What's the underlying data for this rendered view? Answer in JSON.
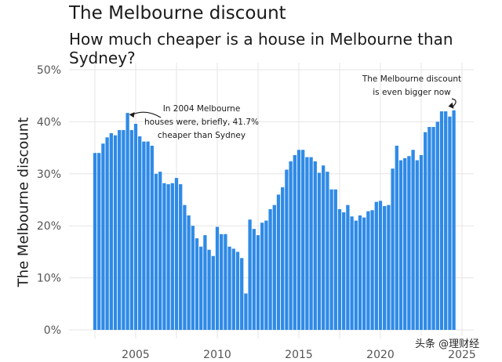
{
  "title": "The Melbourne discount",
  "subtitle": "How much cheaper is a house in Melbourne than Sydney?",
  "watermark": "头条 @理财经",
  "colors": {
    "bar": "#2f8ae6",
    "grid": "#e6e6e6",
    "text": "#1a1a1a",
    "axis_text": "#555555"
  },
  "chart_data": {
    "type": "bar",
    "ylabel": "The Melbourne discount",
    "xlabel": "",
    "ylim": [
      0,
      50
    ],
    "y_ticks": [
      "0%",
      "10%",
      "20%",
      "30%",
      "40%",
      "50%"
    ],
    "x_ticks": [
      "2005",
      "2010",
      "2015",
      "2020",
      "2025"
    ],
    "x_start": 2002.5,
    "x_step": 0.25,
    "grid": true,
    "legend": "none",
    "values": [
      34.0,
      34.0,
      35.8,
      37.0,
      37.8,
      37.4,
      38.4,
      38.4,
      41.7,
      38.4,
      39.6,
      37.2,
      36.2,
      36.2,
      35.4,
      30.0,
      30.4,
      28.2,
      28.0,
      28.2,
      29.2,
      28.0,
      24.0,
      22.0,
      20.0,
      17.6,
      16.0,
      18.2,
      15.4,
      14.2,
      19.8,
      18.4,
      18.4,
      16.0,
      15.6,
      15.0,
      13.8,
      7.0,
      21.2,
      19.4,
      18.2,
      20.6,
      21.0,
      23.2,
      24.0,
      26.0,
      27.4,
      30.8,
      32.4,
      33.6,
      34.6,
      34.6,
      33.2,
      33.2,
      32.4,
      30.2,
      31.6,
      30.4,
      27.0,
      27.0,
      23.2,
      22.6,
      24.0,
      21.8,
      21.0,
      22.0,
      21.6,
      22.8,
      23.0,
      24.6,
      24.8,
      23.8,
      24.0,
      31.0,
      35.4,
      32.6,
      33.0,
      33.4,
      34.6,
      32.6,
      33.6,
      38.0,
      39.0,
      39.0,
      40.0,
      42.0,
      42.0,
      41.0,
      42.2
    ],
    "annotations": [
      {
        "text": [
          "In 2004 Melbourne",
          "houses were, briefly, 41.7%",
          "cheaper than Sydney"
        ],
        "target_index": 8
      },
      {
        "text": [
          "The Melbourne discount",
          "is even bigger now"
        ],
        "target_index": 88
      }
    ]
  }
}
